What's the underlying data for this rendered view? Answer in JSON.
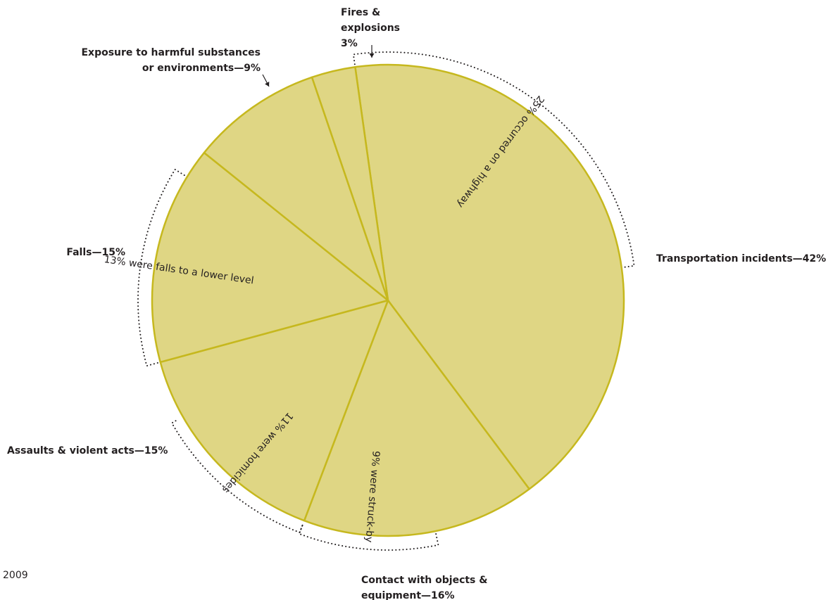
{
  "chart_data": {
    "type": "pie",
    "year": "2009",
    "slices": [
      {
        "name": "Transportation incidents",
        "value": 42,
        "label_lines": [
          "Transportation incidents—42%"
        ]
      },
      {
        "name": "Contact with objects & equipment",
        "value": 16,
        "label_lines": [
          "Contact with objects &",
          "equipment—16%"
        ]
      },
      {
        "name": "Assaults & violent acts",
        "value": 15,
        "label_lines": [
          "Assaults & violent acts—15%"
        ]
      },
      {
        "name": "Falls",
        "value": 15,
        "label_lines": [
          "Falls—15%"
        ]
      },
      {
        "name": "Exposure to harmful substances or environments",
        "value": 9,
        "label_lines": [
          "Exposure to harmful substances",
          "or environments—9%"
        ]
      },
      {
        "name": "Fires & explosions",
        "value": 3,
        "label_lines": [
          "Fires &",
          "explosions",
          "3%"
        ]
      }
    ],
    "subsets": [
      {
        "parent": "Transportation incidents",
        "text": "25% occurred on a highway",
        "value": 25
      },
      {
        "parent": "Contact with objects & equipment",
        "text": "9% were struck-by",
        "value": 9
      },
      {
        "parent": "Assaults & violent acts",
        "text": "11% were homicides",
        "value": 11
      },
      {
        "parent": "Falls",
        "text": "13% were falls to a lower level",
        "value": 13
      }
    ],
    "colors": {
      "fill": "#dfd684",
      "stroke": "#c6b81e",
      "text": "#231f20"
    }
  }
}
